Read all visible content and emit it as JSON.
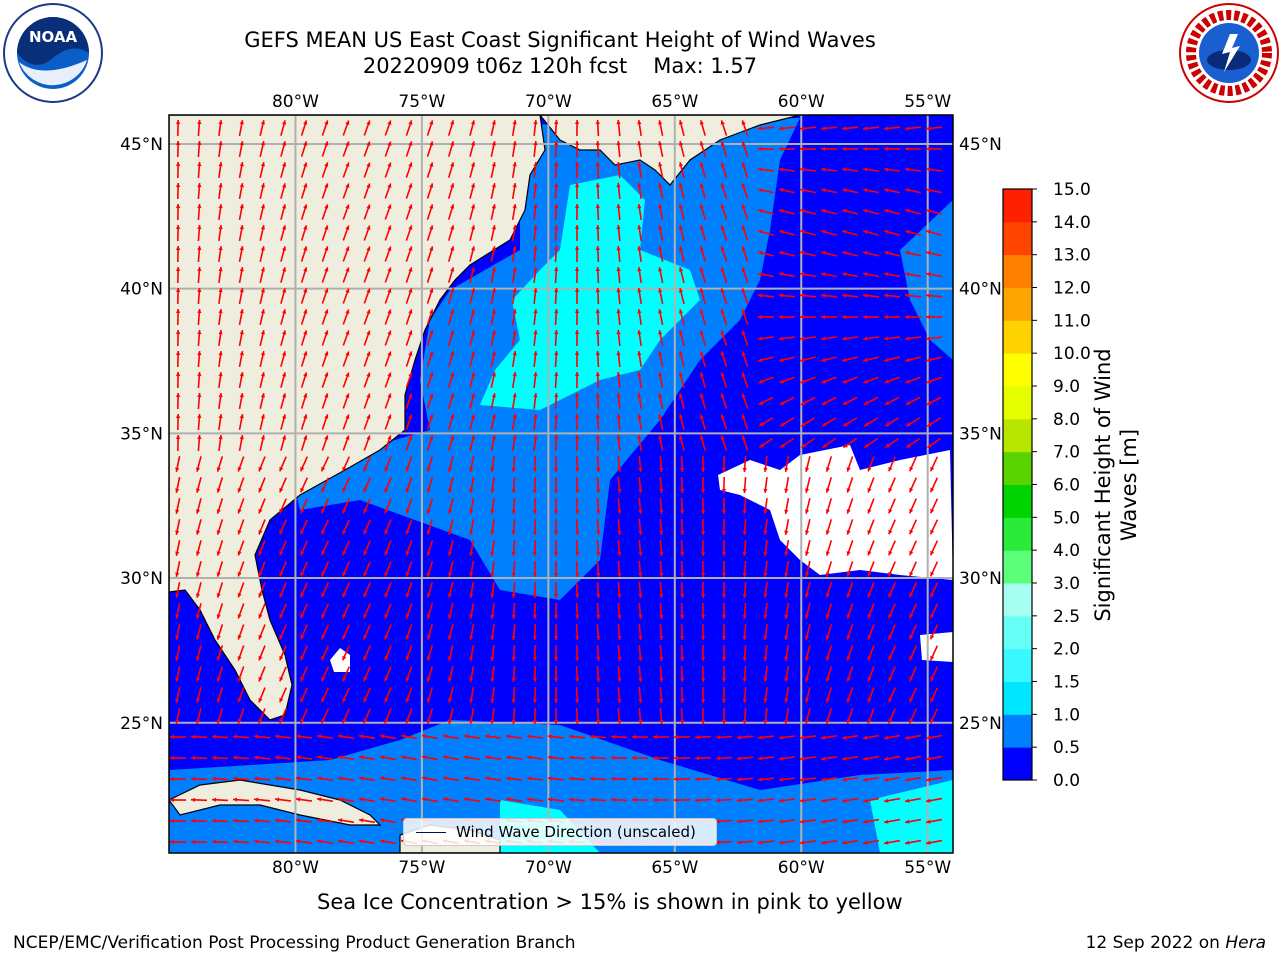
{
  "title": {
    "line1": "GEFS MEAN US East Coast Significant Height of Wind Waves",
    "run": "20220909 t06z 120h fcst",
    "max": "Max: 1.57"
  },
  "logos": {
    "left": {
      "icon": "noaa-logo",
      "text": "NOAA"
    },
    "right": {
      "icon": "nws-logo"
    }
  },
  "chart_data": {
    "type": "map",
    "variable": "Significant Height of Wind Waves",
    "units": "m",
    "lon_range": [
      -85,
      -54
    ],
    "lat_range": [
      20.5,
      46
    ],
    "lon_ticks": [
      {
        "value": -80,
        "label": "80°W"
      },
      {
        "value": -75,
        "label": "75°W"
      },
      {
        "value": -70,
        "label": "70°W"
      },
      {
        "value": -65,
        "label": "65°W"
      },
      {
        "value": -60,
        "label": "60°W"
      },
      {
        "value": -55,
        "label": "55°W"
      }
    ],
    "lat_ticks": [
      {
        "value": 45,
        "label": "45°N"
      },
      {
        "value": 40,
        "label": "40°N"
      },
      {
        "value": 35,
        "label": "35°N"
      },
      {
        "value": 30,
        "label": "30°N"
      },
      {
        "value": 25,
        "label": "25°N"
      }
    ],
    "grid": true,
    "colorbar": {
      "label": "Significant Height of Wind Waves [m]",
      "levels": [
        {
          "value": 0.0,
          "label": "0.0",
          "color": "#0000ff"
        },
        {
          "value": 0.5,
          "label": "0.5",
          "color": "#0080ff"
        },
        {
          "value": 1.0,
          "label": "1.0",
          "color": "#00e6ff"
        },
        {
          "value": 1.5,
          "label": "1.5",
          "color": "#3af8ff"
        },
        {
          "value": 2.0,
          "label": "2.0",
          "color": "#66fff5"
        },
        {
          "value": 2.5,
          "label": "2.5",
          "color": "#a6fff0"
        },
        {
          "value": 3.0,
          "label": "3.0",
          "color": "#5cff7a"
        },
        {
          "value": 4.0,
          "label": "4.0",
          "color": "#2aeb3a"
        },
        {
          "value": 5.0,
          "label": "5.0",
          "color": "#00d400"
        },
        {
          "value": 6.0,
          "label": "6.0",
          "color": "#5ad400"
        },
        {
          "value": 7.0,
          "label": "7.0",
          "color": "#b8e600"
        },
        {
          "value": 8.0,
          "label": "8.0",
          "color": "#e6ff00"
        },
        {
          "value": 9.0,
          "label": "9.0",
          "color": "#ffff00"
        },
        {
          "value": 10.0,
          "label": "10.0",
          "color": "#ffd200"
        },
        {
          "value": 11.0,
          "label": "11.0",
          "color": "#ffa500"
        },
        {
          "value": 12.0,
          "label": "12.0",
          "color": "#ff8000"
        },
        {
          "value": 13.0,
          "label": "13.0",
          "color": "#ff4500"
        },
        {
          "value": 14.0,
          "label": "14.0",
          "color": "#ff2000"
        },
        {
          "value": 15.0,
          "label": "15.0",
          "color": "#ff0000"
        }
      ]
    },
    "colors": {
      "land": "#efedde",
      "ocean_low": "#0000ff",
      "ocean_mid": "#0080ff",
      "ocean_high": "#00ffff",
      "no_data": "#ffffff",
      "arrows": "#ff0000"
    },
    "legend": {
      "label": "Wind Wave Direction (unscaled)",
      "position": "bottom-center"
    }
  },
  "ice_note": "Sea Ice Concentration > 15% is shown in pink to yellow",
  "footer": {
    "left": "NCEP/EMC/Verification Post Processing Product Generation Branch",
    "date": "12 Sep 2022 on ",
    "host": "Hera"
  }
}
